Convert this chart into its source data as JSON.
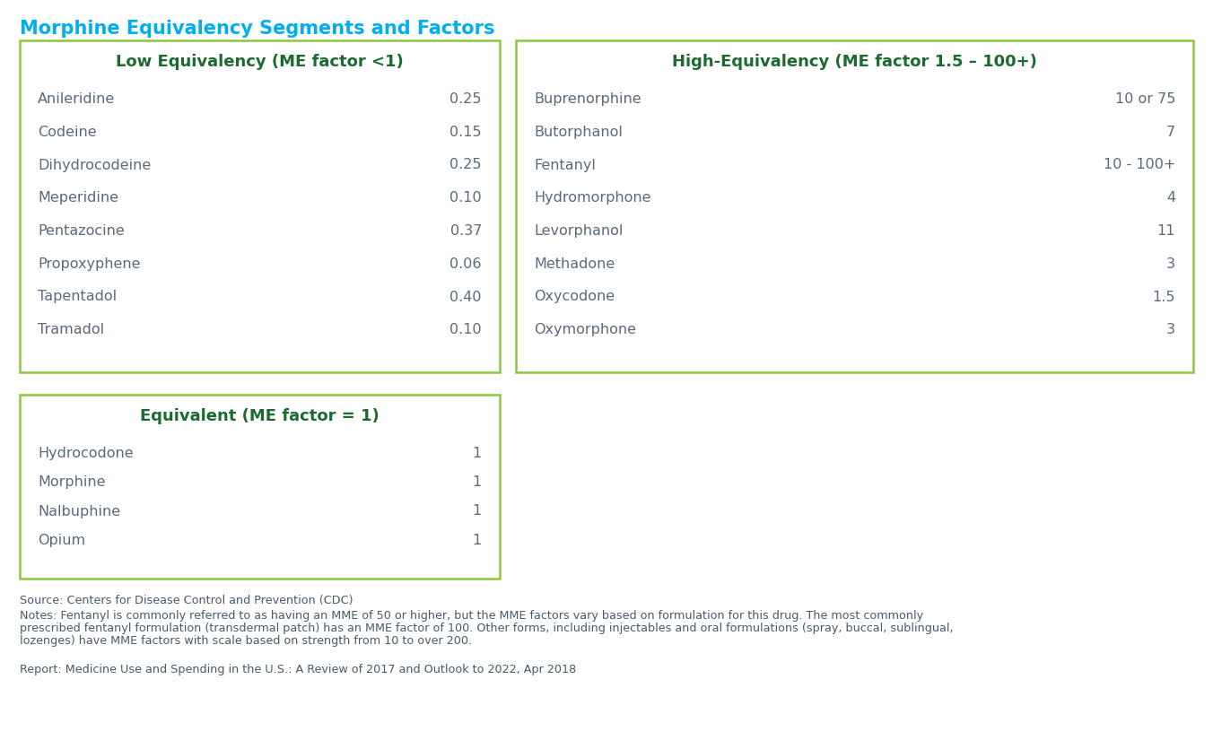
{
  "title": "Morphine Equivalency Segments and Factors",
  "title_color": "#00AEEF",
  "title_fontsize": 15,
  "border_color": "#8DC63F",
  "header_color": "#1B6B2E",
  "text_color": "#5a6a7a",
  "bg_color": "#FFFFFF",
  "low_eq": {
    "header": "Low Equivalency (ME factor <1)",
    "items": [
      [
        "Anileridine",
        "0.25"
      ],
      [
        "Codeine",
        "0.15"
      ],
      [
        "Dihydrocodeine",
        "0.25"
      ],
      [
        "Meperidine",
        "0.10"
      ],
      [
        "Pentazocine",
        "0.37"
      ],
      [
        "Propoxyphene",
        "0.06"
      ],
      [
        "Tapentadol",
        "0.40"
      ],
      [
        "Tramadol",
        "0.10"
      ]
    ]
  },
  "high_eq": {
    "header": "High-Equivalency (ME factor 1.5 – 100+)",
    "items": [
      [
        "Buprenorphine",
        "10 or 75"
      ],
      [
        "Butorphanol",
        "7"
      ],
      [
        "Fentanyl",
        "10 - 100+"
      ],
      [
        "Hydromorphone",
        "4"
      ],
      [
        "Levorphanol",
        "11"
      ],
      [
        "Methadone",
        "3"
      ],
      [
        "Oxycodone",
        "1.5"
      ],
      [
        "Oxymorphone",
        "3"
      ]
    ]
  },
  "equiv": {
    "header": "Equivalent (ME factor = 1)",
    "items": [
      [
        "Hydrocodone",
        "1"
      ],
      [
        "Morphine",
        "1"
      ],
      [
        "Nalbuphine",
        "1"
      ],
      [
        "Opium",
        "1"
      ]
    ]
  },
  "source_text": "Source: Centers for Disease Control and Prevention (CDC)",
  "notes_line1": "Notes: Fentanyl is commonly referred to as having an MME of 50 or higher, but the MME factors vary based on formulation for this drug. The most commonly",
  "notes_line2": "prescribed fentanyl formulation (transdermal patch) has an MME factor of 100. Other forms, including injectables and oral formulations (spray, buccal, sublingual,",
  "notes_line3": "lozenges) have MME factors with scale based on strength from 10 to over 200.",
  "report_text": "Report: Medicine Use and Spending in the U.S.: A Review of 2017 and Outlook to 2022, Apr 2018",
  "fig_w": 13.52,
  "fig_h": 8.35,
  "dpi": 100
}
